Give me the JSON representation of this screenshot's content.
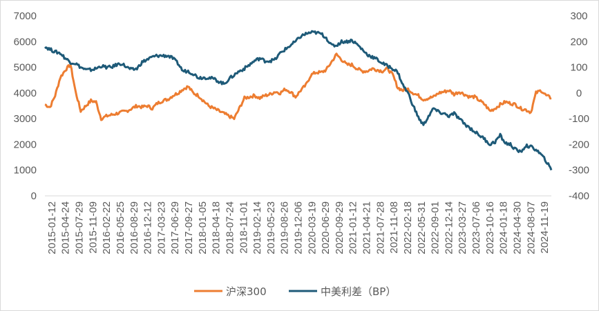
{
  "chart_data": {
    "type": "line",
    "title": "",
    "xlabel": "",
    "ylabel": "",
    "y2label": "",
    "ylim": [
      0,
      7000
    ],
    "y2lim": [
      -400,
      300
    ],
    "y_ticks": [
      "7000",
      "6000",
      "5000",
      "4000",
      "3000",
      "2000",
      "1000",
      "0"
    ],
    "y2_ticks": [
      "300",
      "200",
      "100",
      "0",
      "-100",
      "-200",
      "-300",
      "-400"
    ],
    "x_tick_labels": [
      "2015-01-12",
      "2015-04-24",
      "2015-07-29",
      "2015-11-09",
      "2016-02-22",
      "2016-05-25",
      "2016-08-29",
      "2016-12-12",
      "2017-03-23",
      "2017-06-29",
      "2017-09-27",
      "2018-01-05",
      "2018-04-18",
      "2018-07-24",
      "2018-11-01",
      "2019-02-14",
      "2019-05-23",
      "2019-08-26",
      "2019-12-06",
      "2020-03-19",
      "2020-06-29",
      "2020-09-29",
      "2021-01-12",
      "2021-04-21",
      "2021-07-28",
      "2021-11-08",
      "2022-02-18",
      "2022-05-31",
      "2022-09-01",
      "2022-12-14",
      "2023-03-27",
      "2023-07-06",
      "2023-10-16",
      "2024-01-18",
      "2024-04-30",
      "2024-08-07",
      "2024-11-19"
    ],
    "grid": false,
    "legend_position": "bottom",
    "series": [
      {
        "name": "沪深300",
        "axis": "left",
        "color": "#ed7d31",
        "values": [
          3550,
          3450,
          3900,
          4600,
          4900,
          5100,
          4050,
          3300,
          3500,
          3700,
          3650,
          3000,
          3100,
          3150,
          3200,
          3250,
          3300,
          3400,
          3500,
          3450,
          3500,
          3400,
          3600,
          3700,
          3750,
          3900,
          4000,
          4150,
          4250,
          4000,
          3900,
          3700,
          3500,
          3400,
          3300,
          3200,
          3100,
          3000,
          3400,
          3800,
          3850,
          3900,
          3800,
          3900,
          3950,
          4050,
          4000,
          4150,
          4050,
          3850,
          4100,
          4300,
          4700,
          4800,
          4800,
          4900,
          5200,
          5500,
          5300,
          5100,
          5100,
          4950,
          4850,
          4850,
          4950,
          4900,
          4850,
          4950,
          4700,
          4200,
          4100,
          4150,
          4000,
          3900,
          3750,
          3800,
          3850,
          4000,
          4050,
          4100,
          3950,
          4050,
          3950,
          3850,
          3850,
          3700,
          3550,
          3300,
          3400,
          3550,
          3650,
          3600,
          3550,
          3400,
          3350,
          3250,
          4000,
          4100,
          3900,
          3800
        ]
      },
      {
        "name": "中美利差（BP）",
        "axis": "right",
        "color": "#1e5a78",
        "values": [
          180,
          170,
          160,
          155,
          135,
          120,
          115,
          100,
          90,
          90,
          95,
          105,
          100,
          100,
          110,
          115,
          100,
          90,
          95,
          120,
          130,
          140,
          145,
          145,
          145,
          135,
          115,
          85,
          85,
          75,
          60,
          60,
          60,
          55,
          45,
          35,
          55,
          70,
          85,
          95,
          110,
          125,
          135,
          125,
          125,
          130,
          155,
          170,
          185,
          200,
          220,
          230,
          235,
          235,
          230,
          215,
          185,
          185,
          200,
          200,
          205,
          190,
          170,
          150,
          140,
          130,
          115,
          105,
          95,
          80,
          30,
          0,
          -50,
          -95,
          -125,
          -90,
          -60,
          -75,
          -80,
          -90,
          -80,
          -100,
          -120,
          -135,
          -150,
          -165,
          -180,
          -200,
          -190,
          -165,
          -195,
          -200,
          -220,
          -230,
          -205,
          -210,
          -220,
          -240,
          -265,
          -300
        ]
      }
    ]
  },
  "legend": {
    "item1_label": "沪深300",
    "item2_label": "中美利差（BP）"
  }
}
